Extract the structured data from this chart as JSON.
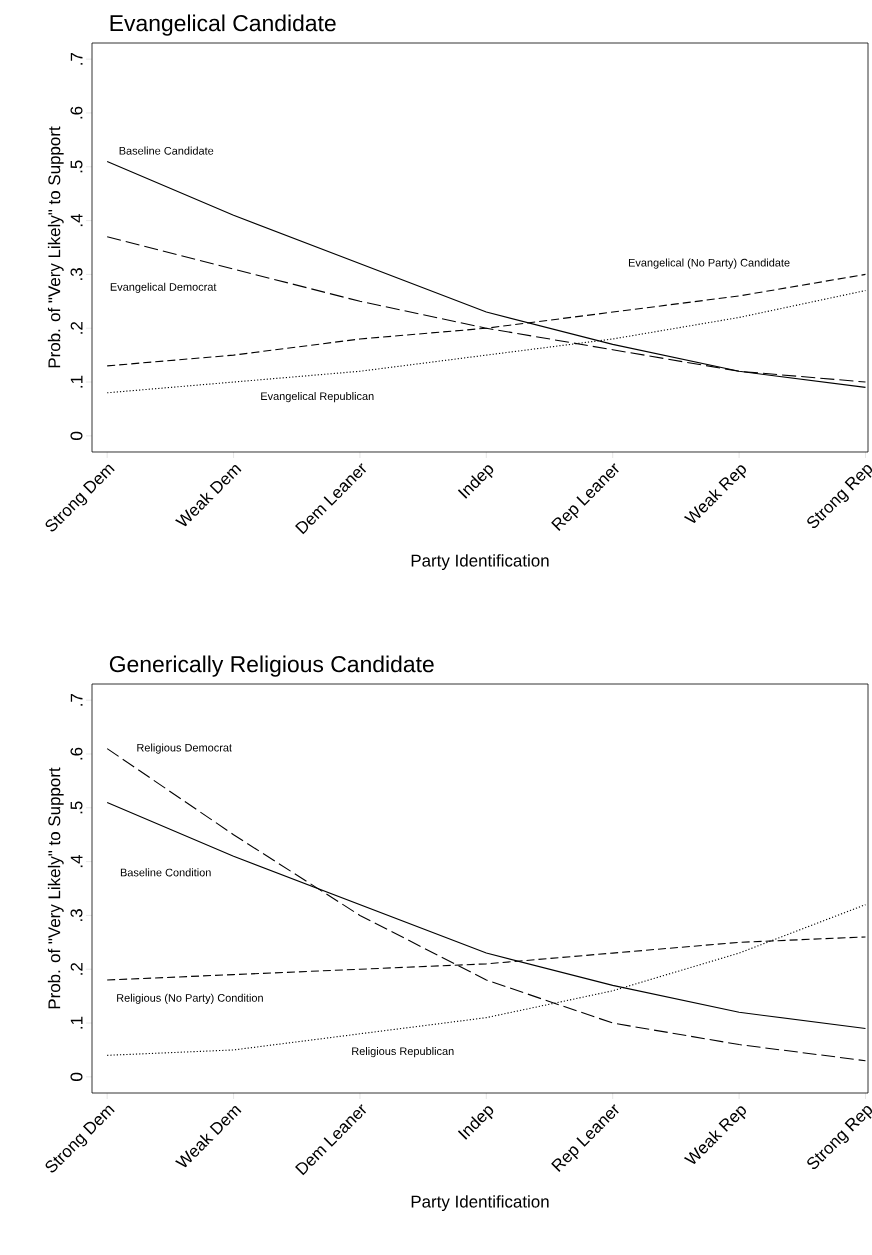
{
  "chart_data": [
    {
      "type": "line",
      "title": "Evangelical Candidate",
      "xlabel": "Party Identification",
      "ylabel": "Prob. of \"Very Likely\" to Support",
      "categories": [
        "Strong Dem",
        "Weak Dem",
        "Dem Leaner",
        "Indep",
        "Rep Leaner",
        "Weak Rep",
        "Strong Rep"
      ],
      "ylim": [
        -0.03,
        0.73
      ],
      "yticks": [
        0,
        {
          "value": 0.1,
          "label": ".1"
        },
        {
          "value": 0.2,
          "label": ".2"
        },
        {
          "value": 0.3,
          "label": ".3"
        },
        {
          "value": 0.4,
          "label": ".4"
        },
        {
          "value": 0.5,
          "label": ".5"
        },
        {
          "value": 0.6,
          "label": ".6"
        },
        {
          "value": 0.7,
          "label": ".7"
        }
      ],
      "series": [
        {
          "name": "Baseline Candidate",
          "color": "#000000",
          "line_style": "solid",
          "values": [
            0.51,
            0.41,
            0.32,
            0.23,
            0.17,
            0.12,
            0.09
          ]
        },
        {
          "name": "Evangelical Democrat",
          "color": "#000000",
          "line_style": "dashed",
          "values": [
            0.37,
            0.31,
            0.25,
            0.2,
            0.16,
            0.12,
            0.1
          ]
        },
        {
          "name": "Evangelical (No Party) Candidate",
          "color": "#000000",
          "line_style": "dashed",
          "values": [
            0.13,
            0.15,
            0.18,
            0.2,
            0.23,
            0.26,
            0.3
          ]
        },
        {
          "name": "Evangelical Republican",
          "color": "#000000",
          "line_style": "dotted",
          "values": [
            0.08,
            0.1,
            0.12,
            0.15,
            0.18,
            0.22,
            0.27
          ]
        }
      ]
    },
    {
      "type": "line",
      "title": "Generically Religious Candidate",
      "xlabel": "Party Identification",
      "ylabel": "Prob. of \"Very Likely\" to Support",
      "categories": [
        "Strong Dem",
        "Weak Dem",
        "Dem Leaner",
        "Indep",
        "Rep Leaner",
        "Weak Rep",
        "Strong Rep"
      ],
      "ylim": [
        -0.03,
        0.73
      ],
      "yticks": [
        0,
        {
          "value": 0.1,
          "label": ".1"
        },
        {
          "value": 0.2,
          "label": ".2"
        },
        {
          "value": 0.3,
          "label": ".3"
        },
        {
          "value": 0.4,
          "label": ".4"
        },
        {
          "value": 0.5,
          "label": ".5"
        },
        {
          "value": 0.6,
          "label": ".6"
        },
        {
          "value": 0.7,
          "label": ".7"
        }
      ],
      "series": [
        {
          "name": "Baseline Condition",
          "color": "#000000",
          "line_style": "solid",
          "values": [
            0.51,
            0.41,
            0.32,
            0.23,
            0.17,
            0.12,
            0.09
          ]
        },
        {
          "name": "Religious Democrat",
          "color": "#000000",
          "line_style": "dashed",
          "values": [
            0.61,
            0.45,
            0.3,
            0.18,
            0.1,
            0.06,
            0.03
          ]
        },
        {
          "name": "Religious (No Party) Condition",
          "color": "#000000",
          "line_style": "dashed",
          "values": [
            0.18,
            0.19,
            0.2,
            0.21,
            0.23,
            0.25,
            0.26
          ]
        },
        {
          "name": "Religious Republican",
          "color": "#000000",
          "line_style": "dotted",
          "values": [
            0.04,
            0.05,
            0.08,
            0.11,
            0.16,
            0.23,
            0.32
          ]
        }
      ]
    }
  ]
}
